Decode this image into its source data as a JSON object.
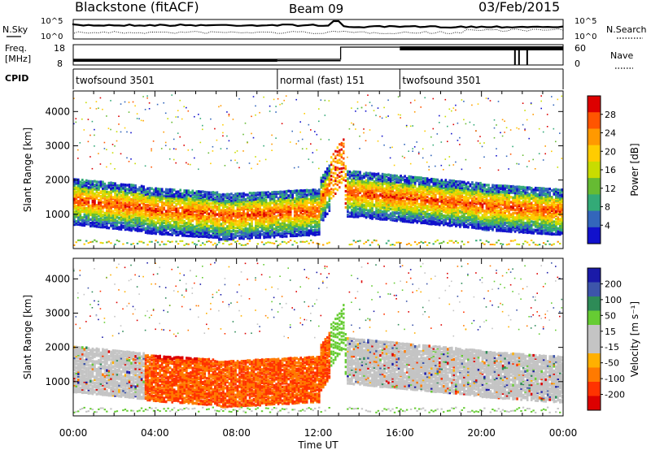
{
  "header": {
    "station": "Blackstone (fitACF)",
    "beam": "Beam 09",
    "date": "03/Feb/2015"
  },
  "side_labels": {
    "nsky": "N.Sky",
    "nsearch": "N.Search",
    "freq_line1": "Freq.",
    "freq_line2": "[MHz]",
    "nave": "Nave",
    "cpid": "CPID"
  },
  "noise_axis": {
    "left_ticks": [
      "10^5",
      "10^0"
    ],
    "right_ticks": [
      "10^5",
      "10^0"
    ]
  },
  "freq_axis": {
    "left_ticks": [
      "18",
      "8"
    ],
    "right_ticks": [
      "60",
      "0"
    ]
  },
  "cpid_segments": [
    {
      "label": "twofsound 3501",
      "start_hr": 0,
      "end_hr": 10
    },
    {
      "label": "normal (fast) 151",
      "start_hr": 10,
      "end_hr": 16
    },
    {
      "label": "twofsound 3501",
      "start_hr": 16,
      "end_hr": 24
    }
  ],
  "chart_data": [
    {
      "type": "heatmap",
      "title": "",
      "xlabel": "Time UT",
      "ylabel": "Slant Range [km]",
      "xlim_hr": [
        0,
        24
      ],
      "ylim": [
        0,
        4600
      ],
      "x_ticks": [
        "00:00",
        "04:00",
        "08:00",
        "12:00",
        "16:00",
        "20:00",
        "00:00"
      ],
      "y_ticks": [
        1000,
        2000,
        3000,
        4000
      ],
      "colorbar": {
        "label": "Power [dB]",
        "ticks": [
          "28",
          "24",
          "20",
          "16",
          "12",
          "8",
          "4"
        ],
        "colors": [
          "#dd0000",
          "#ff5500",
          "#ff9900",
          "#ffcc00",
          "#c8dc00",
          "#66bb33",
          "#33aa77",
          "#3366bb",
          "#1111cc"
        ]
      }
    },
    {
      "type": "heatmap",
      "title": "",
      "xlabel": "Time UT",
      "ylabel": "Slant Range [km]",
      "xlim_hr": [
        0,
        24
      ],
      "ylim": [
        0,
        4600
      ],
      "x_ticks": [
        "00:00",
        "04:00",
        "08:00",
        "12:00",
        "16:00",
        "20:00",
        "00:00"
      ],
      "y_ticks": [
        1000,
        2000,
        3000,
        4000
      ],
      "colorbar": {
        "label": "Velocity [m s⁻¹]",
        "ticks": [
          "200",
          "100",
          "50",
          "15",
          "-15",
          "-50",
          "-100",
          "-200"
        ],
        "colors": [
          "#1a1aa8",
          "#3d55aa",
          "#2e8b57",
          "#66cc33",
          "#c4c4c4",
          "#c4c4c4",
          "#ffb000",
          "#ff7a00",
          "#ff3300",
          "#dd0000"
        ]
      }
    }
  ]
}
